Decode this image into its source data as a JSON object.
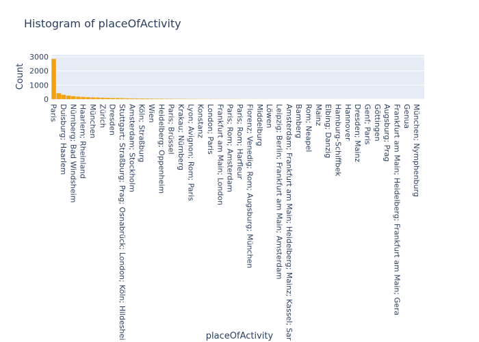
{
  "chart_data": {
    "type": "bar",
    "title": "Histogram of placeOfActivity",
    "xlabel": "placeOfActivity",
    "ylabel": "Count",
    "categories": [
      "Paris",
      null,
      "Duisburg; Haarlem",
      null,
      "Nürnberg; Bad Windsheim",
      null,
      "Haarlem; Rheinland",
      null,
      "München",
      null,
      "Zürich",
      null,
      "Dresden",
      null,
      "Stuttgart; Straßburg; Prag; Osnabrück; London; Köln; Hildeshei",
      null,
      "Amsterdam; Stockholm",
      null,
      "Köln; Straßburg",
      null,
      "Wien",
      null,
      "Heidelberg; Oppenheim",
      null,
      "Paris; Brüssel",
      null,
      "Krakau; Nürnberg",
      null,
      "Lyon; Avignon; Rom; Paris",
      null,
      "Konstanz",
      null,
      "London; Paris",
      null,
      "Frankfurt am Main; London",
      null,
      "Paris; Rom; Amsterdam",
      null,
      "Paris; Rom; Harfleur",
      null,
      "Florenz; Venedig; Rom; Augsburg; München",
      null,
      "Middelburg",
      null,
      "Löwen",
      null,
      "Leipzig; Berlin; Frankfurt am Main; Amsterdam",
      null,
      "Amsterdam; Frankfurt am Main; Heidelberg; Mainz; Kassel; Sar",
      null,
      "Bamberg",
      null,
      "Rom; Neapel",
      null,
      "Mainz",
      null,
      "Elbing; Danzig",
      null,
      "Hamburg-Schiffbek",
      null,
      "Hannover",
      null,
      "Dresden; Mainz",
      null,
      "Genf; Paris",
      null,
      "Göttingen",
      null,
      "Augsburg; Prag",
      null,
      "Frankfurt am Main; Heidelberg; Frankfurt am Main; Gera",
      null,
      "Genua",
      null,
      "München; Nymphenburg",
      null
    ],
    "values": [
      2850,
      420,
      310,
      250,
      210,
      180,
      160,
      140,
      125,
      115,
      105,
      95,
      85,
      78,
      70,
      62,
      55,
      50,
      45,
      40,
      36,
      32,
      29,
      26,
      23,
      21,
      19,
      17,
      15,
      14,
      13,
      12,
      11,
      10,
      9,
      9,
      8,
      8,
      7,
      7,
      6,
      6,
      5,
      5,
      5,
      4,
      4,
      4,
      3,
      3,
      3,
      3,
      3,
      2,
      2,
      2,
      2,
      2,
      2,
      2,
      2,
      1,
      1,
      1,
      1,
      1,
      1,
      1,
      1,
      1,
      1,
      1,
      1,
      1,
      1,
      1
    ],
    "color": "#f5a00f",
    "ylim": [
      0,
      3150
    ],
    "yticks": [
      0,
      1000,
      2000,
      3000
    ],
    "grid": true
  }
}
